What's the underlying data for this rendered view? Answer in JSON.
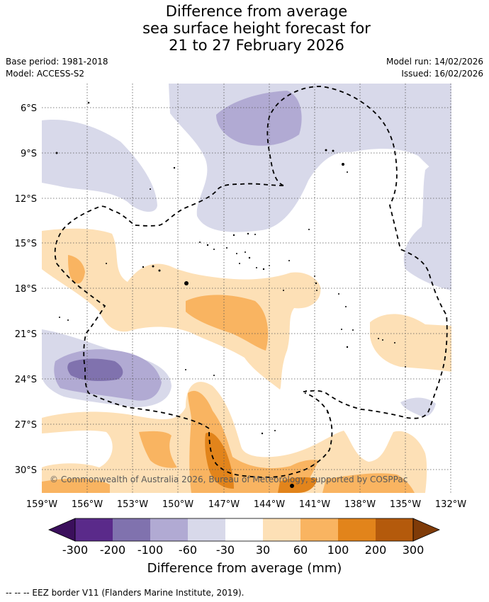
{
  "title_lines": [
    "Difference from average",
    "sea surface height forecast for",
    "21 to 27 February 2026"
  ],
  "meta": {
    "base_period": "Base period: 1981-2018",
    "model": "Model: ACCESS-S2",
    "model_run": "Model run: 14/02/2026",
    "issued": "Issued: 16/02/2026"
  },
  "map": {
    "lat_labels": [
      "6°S",
      "9°S",
      "12°S",
      "15°S",
      "18°S",
      "21°S",
      "24°S",
      "27°S",
      "30°S"
    ],
    "lon_labels": [
      "159°W",
      "156°W",
      "153°W",
      "150°W",
      "147°W",
      "144°W",
      "141°W",
      "138°W",
      "135°W",
      "132°W"
    ],
    "copyright": "© Commonwealth of Australia 2026, Bureau of Meteorology, supported by COSPPac"
  },
  "colorbar": {
    "ticks": [
      "-300",
      "-200",
      "-100",
      "-60",
      "-30",
      "30",
      "60",
      "100",
      "200",
      "300"
    ],
    "colors": [
      "#5a2a8a",
      "#8072ae",
      "#b1aad3",
      "#d8d9ea",
      "#ffffff",
      "#fde0b6",
      "#f9b461",
      "#e2841b",
      "#b45a0c"
    ],
    "end_low_color": "#3b0f5c",
    "end_high_color": "#7f3b08",
    "label": "Difference from average (mm)"
  },
  "footer": "--  --  -- EEZ border V11 (Flanders Marine Institute, 2019)."
}
